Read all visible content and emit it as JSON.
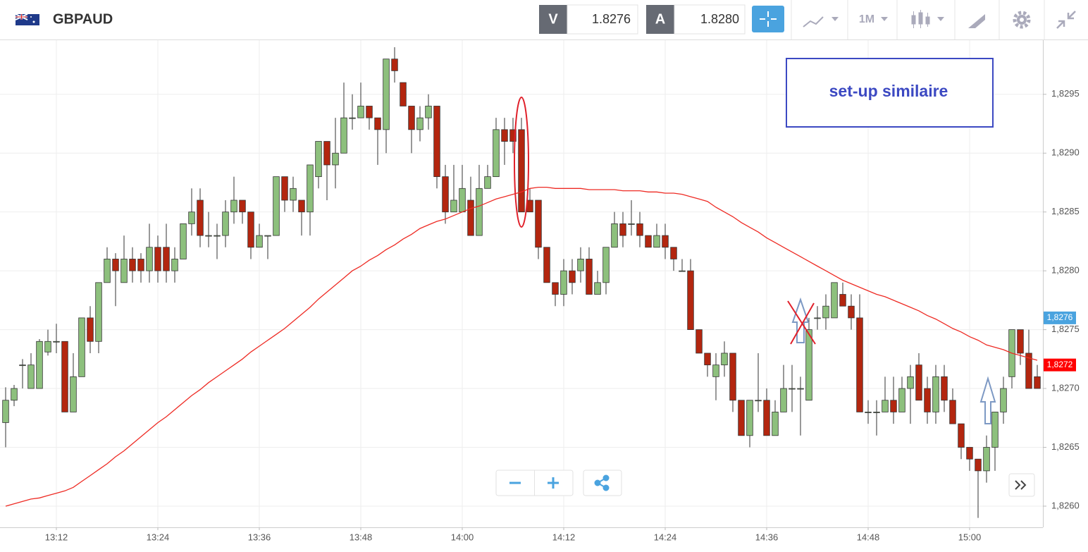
{
  "header": {
    "symbol": "GBPAUD",
    "bid_label": "V",
    "bid": "1.8276",
    "ask_label": "A",
    "ask": "1.8280",
    "timeframe": "1M"
  },
  "chart_data": {
    "type": "candlestick",
    "categories": [
      null,
      null,
      null,
      null,
      null,
      null,
      "13:12",
      null,
      null,
      null,
      null,
      null,
      null,
      null,
      null,
      null,
      null,
      null,
      "13:24",
      null,
      null,
      null,
      null,
      null,
      null,
      null,
      null,
      null,
      null,
      null,
      "13:36",
      null,
      null,
      null,
      null,
      null,
      null,
      null,
      null,
      null,
      null,
      null,
      "13:48",
      null,
      null,
      null,
      null,
      null,
      null,
      null,
      null,
      null,
      null,
      null,
      "14:00",
      null,
      null,
      null,
      null,
      null,
      null,
      null,
      null,
      null,
      null,
      null,
      "14:12",
      null,
      null,
      null,
      null,
      null,
      null,
      null,
      null,
      null,
      null,
      null,
      "14:24",
      null,
      null,
      null,
      null,
      null,
      null,
      null,
      null,
      null,
      null,
      null,
      "14:36",
      null,
      null,
      null,
      null,
      null,
      null,
      null,
      null,
      null,
      null,
      null,
      "14:48",
      null,
      null,
      null,
      null,
      null,
      null,
      null,
      null,
      null,
      null,
      null,
      "15:00",
      null,
      null,
      null,
      null,
      null,
      null,
      null,
      null
    ],
    "open": [
      1.82671,
      1.8269,
      1.8272,
      1.827,
      1.827,
      1.82731,
      1.8274,
      1.8274,
      1.8268,
      1.8271,
      1.8276,
      1.8274,
      1.8279,
      1.8281,
      1.8279,
      1.8281,
      1.8281,
      1.828,
      1.8282,
      1.8282,
      1.828,
      1.8281,
      1.8284,
      1.8286,
      1.8283,
      1.8283,
      1.8283,
      1.8285,
      1.8286,
      1.8285,
      1.8282,
      1.8283,
      1.8283,
      1.8288,
      1.8286,
      1.8286,
      1.8285,
      1.8288,
      1.8291,
      1.8289,
      1.829,
      1.8293,
      1.8293,
      1.8294,
      1.8293,
      1.8292,
      1.8298,
      1.8296,
      1.8294,
      1.8292,
      1.8293,
      1.8294,
      1.8288,
      1.8285,
      1.8285,
      1.8286,
      1.8283,
      1.8287,
      1.8288,
      1.8292,
      1.8292,
      1.8292,
      1.8286,
      1.8286,
      1.8282,
      1.8279,
      1.8278,
      1.828,
      1.828,
      1.8281,
      1.8278,
      1.8279,
      1.8282,
      1.8284,
      1.8284,
      1.8284,
      1.8283,
      1.8282,
      1.8283,
      1.8282,
      1.828,
      1.828,
      1.8275,
      1.8273,
      1.8271,
      1.8272,
      1.8273,
      1.8269,
      1.8266,
      1.8269,
      1.8269,
      1.8266,
      1.8268,
      1.827,
      1.827,
      1.8269,
      1.8276,
      1.8276,
      1.8276,
      1.8278,
      1.8277,
      1.8276,
      1.8268,
      1.8268,
      1.8268,
      1.8269,
      1.8268,
      1.827,
      1.8272,
      1.827,
      1.8268,
      1.8271,
      1.8269,
      1.8267,
      1.8265,
      1.8264,
      1.8263,
      1.8265,
      1.8268,
      1.8271,
      1.8275,
      1.8273,
      1.8271
    ],
    "high": [
      1.82701,
      1.82703,
      1.82725,
      1.8273,
      1.82742,
      1.8275,
      1.82755,
      1.8274,
      1.8273,
      1.8276,
      1.8277,
      1.8279,
      1.8282,
      1.82815,
      1.8283,
      1.8282,
      1.82815,
      1.8284,
      1.8283,
      1.8284,
      1.8282,
      1.8284,
      1.8287,
      1.8287,
      1.8285,
      1.8284,
      1.8286,
      1.8288,
      1.8286,
      1.8285,
      1.8284,
      1.8283,
      1.8288,
      1.8288,
      1.8288,
      1.8286,
      1.8289,
      1.8291,
      1.8291,
      1.8293,
      1.8296,
      1.8295,
      1.8296,
      1.8294,
      1.8293,
      1.8298,
      1.8299,
      1.8296,
      1.8294,
      1.8294,
      1.8295,
      1.8294,
      1.8289,
      1.8289,
      1.8289,
      1.8288,
      1.8289,
      1.8289,
      1.8293,
      1.8293,
      1.8293,
      1.8293,
      1.8287,
      1.8286,
      1.8282,
      1.8279,
      1.8281,
      1.8281,
      1.8282,
      1.8282,
      1.828,
      1.8282,
      1.8285,
      1.8285,
      1.8286,
      1.8285,
      1.8283,
      1.8284,
      1.8284,
      1.8282,
      1.8281,
      1.8281,
      1.8275,
      1.8273,
      1.8273,
      1.8274,
      1.8273,
      1.8269,
      1.8269,
      1.8273,
      1.827,
      1.8269,
      1.8272,
      1.8272,
      1.8271,
      1.8276,
      1.8277,
      1.8278,
      1.8279,
      1.8279,
      1.8278,
      1.8278,
      1.8269,
      1.8269,
      1.8271,
      1.8271,
      1.8271,
      1.8272,
      1.8273,
      1.8271,
      1.8272,
      1.8272,
      1.827,
      1.8267,
      1.8265,
      1.8264,
      1.8266,
      1.8268,
      1.8271,
      1.8275,
      1.8275,
      1.8275,
      1.8272
    ],
    "low": [
      1.8265,
      1.82685,
      1.827,
      1.827,
      1.827,
      1.82728,
      1.8273,
      1.8268,
      1.8268,
      1.8271,
      1.8273,
      1.8273,
      1.8279,
      1.8277,
      1.8279,
      1.8279,
      1.8279,
      1.8279,
      1.8279,
      1.8279,
      1.8279,
      1.8281,
      1.8283,
      1.8282,
      1.8282,
      1.8281,
      1.8282,
      1.8284,
      1.8284,
      1.8281,
      1.8282,
      1.8281,
      1.8283,
      1.8285,
      1.8285,
      1.8283,
      1.8283,
      1.8287,
      1.8286,
      1.8287,
      1.829,
      1.8292,
      1.8293,
      1.8292,
      1.8289,
      1.829,
      1.8296,
      1.8294,
      1.829,
      1.8291,
      1.8292,
      1.8287,
      1.8284,
      1.8285,
      1.8285,
      1.8283,
      1.8283,
      1.8287,
      1.8288,
      1.8289,
      1.829,
      1.8285,
      1.8285,
      1.8281,
      1.8279,
      1.8277,
      1.8277,
      1.8278,
      1.8279,
      1.8278,
      1.8278,
      1.8278,
      1.8282,
      1.8282,
      1.8283,
      1.8282,
      1.8282,
      1.8282,
      1.8281,
      1.828,
      1.828,
      1.8275,
      1.8273,
      1.8271,
      1.8269,
      1.8271,
      1.8268,
      1.8266,
      1.8265,
      1.8268,
      1.8266,
      1.8266,
      1.8268,
      1.8268,
      1.8266,
      1.8269,
      1.8275,
      1.8275,
      1.8276,
      1.8277,
      1.8275,
      1.8268,
      1.8267,
      1.8266,
      1.8268,
      1.8267,
      1.8268,
      1.8267,
      1.8269,
      1.8267,
      1.8267,
      1.8268,
      1.8267,
      1.8264,
      1.8263,
      1.8259,
      1.8262,
      1.8263,
      1.8267,
      1.827,
      1.8272,
      1.827,
      1.827
    ],
    "close": [
      1.8269,
      1.827,
      1.8272,
      1.8272,
      1.8274,
      1.8274,
      1.8274,
      1.8268,
      1.8271,
      1.8276,
      1.8274,
      1.8279,
      1.8281,
      1.828,
      1.8281,
      1.828,
      1.828,
      1.8282,
      1.828,
      1.828,
      1.8281,
      1.8284,
      1.8285,
      1.8283,
      1.8283,
      1.8283,
      1.8285,
      1.8286,
      1.8285,
      1.8282,
      1.8283,
      1.8283,
      1.8288,
      1.8286,
      1.8287,
      1.8285,
      1.8289,
      1.8291,
      1.8289,
      1.829,
      1.8293,
      1.8293,
      1.8294,
      1.8293,
      1.8292,
      1.8298,
      1.8297,
      1.8294,
      1.8292,
      1.8293,
      1.8294,
      1.8288,
      1.8285,
      1.8286,
      1.8287,
      1.8283,
      1.8287,
      1.8288,
      1.8292,
      1.8291,
      1.8291,
      1.8285,
      1.8285,
      1.8282,
      1.8279,
      1.8278,
      1.828,
      1.8279,
      1.8281,
      1.8278,
      1.8279,
      1.8282,
      1.8284,
      1.8283,
      1.8284,
      1.8283,
      1.8282,
      1.8283,
      1.8282,
      1.8281,
      1.828,
      1.8275,
      1.8273,
      1.8272,
      1.8272,
      1.8273,
      1.8269,
      1.8266,
      1.8269,
      1.8269,
      1.8266,
      1.8268,
      1.827,
      1.827,
      1.827,
      1.8275,
      1.8276,
      1.8277,
      1.8279,
      1.8277,
      1.8276,
      1.8268,
      1.8268,
      1.8268,
      1.8269,
      1.8268,
      1.827,
      1.8271,
      1.8269,
      1.8268,
      1.8271,
      1.8269,
      1.8267,
      1.8265,
      1.8264,
      1.8263,
      1.8265,
      1.8268,
      1.827,
      1.8275,
      1.8273,
      1.827,
      1.827
    ],
    "up_color": "#8dc07d",
    "down_color": "#b3260f",
    "ma": {
      "color": "#ee2b24",
      "values": [
        1.826,
        1.82602,
        1.82604,
        1.82606,
        1.82607,
        1.82609,
        1.82611,
        1.82613,
        1.82616,
        1.82621,
        1.82626,
        1.82631,
        1.82636,
        1.82642,
        1.82647,
        1.82653,
        1.82659,
        1.82665,
        1.82671,
        1.82676,
        1.82682,
        1.82688,
        1.82694,
        1.82699,
        1.82705,
        1.8271,
        1.82715,
        1.8272,
        1.82725,
        1.82731,
        1.82736,
        1.82741,
        1.82746,
        1.82751,
        1.82757,
        1.82763,
        1.82769,
        1.82776,
        1.82782,
        1.82788,
        1.82794,
        1.828,
        1.82804,
        1.82809,
        1.82813,
        1.82818,
        1.82822,
        1.82827,
        1.82831,
        1.82836,
        1.82839,
        1.82842,
        1.82844,
        1.82847,
        1.8285,
        1.82853,
        1.82855,
        1.82858,
        1.82861,
        1.82863,
        1.82865,
        1.82867,
        1.8287,
        1.82871,
        1.82871,
        1.8287,
        1.8287,
        1.8287,
        1.8287,
        1.82869,
        1.82869,
        1.82869,
        1.82869,
        1.82868,
        1.82868,
        1.82868,
        1.82867,
        1.82867,
        1.82866,
        1.82866,
        1.82865,
        1.82863,
        1.82861,
        1.82859,
        1.82854,
        1.8285,
        1.82846,
        1.82841,
        1.82837,
        1.82833,
        1.82828,
        1.82824,
        1.8282,
        1.82816,
        1.82812,
        1.82808,
        1.82804,
        1.828,
        1.82796,
        1.82792,
        1.82789,
        1.82786,
        1.82783,
        1.8278,
        1.82778,
        1.82775,
        1.82772,
        1.82769,
        1.82766,
        1.82762,
        1.82759,
        1.82755,
        1.82751,
        1.82748,
        1.82744,
        1.82741,
        1.82737,
        1.82735,
        1.82733,
        1.8273,
        1.82728,
        1.82726,
        1.82724
      ]
    },
    "ylim": [
      1.82582,
      1.82996
    ],
    "yticks": [
      {
        "value": 1.826,
        "label": "1,8260"
      },
      {
        "value": 1.8265,
        "label": "1,8265"
      },
      {
        "value": 1.827,
        "label": "1,8270"
      },
      {
        "value": 1.8275,
        "label": "1,8275"
      },
      {
        "value": 1.828,
        "label": "1,8280"
      },
      {
        "value": 1.8285,
        "label": "1,8285"
      },
      {
        "value": 1.829,
        "label": "1,8290"
      },
      {
        "value": 1.8295,
        "label": "1,8295"
      }
    ],
    "grid": true,
    "price_markers": [
      {
        "value": 1.8276,
        "label": "1,8276",
        "color": "#4aa3df"
      },
      {
        "value": 1.8272,
        "label": "1,8272",
        "color": "#ff0000"
      }
    ],
    "annotation": "set-up similaire"
  }
}
